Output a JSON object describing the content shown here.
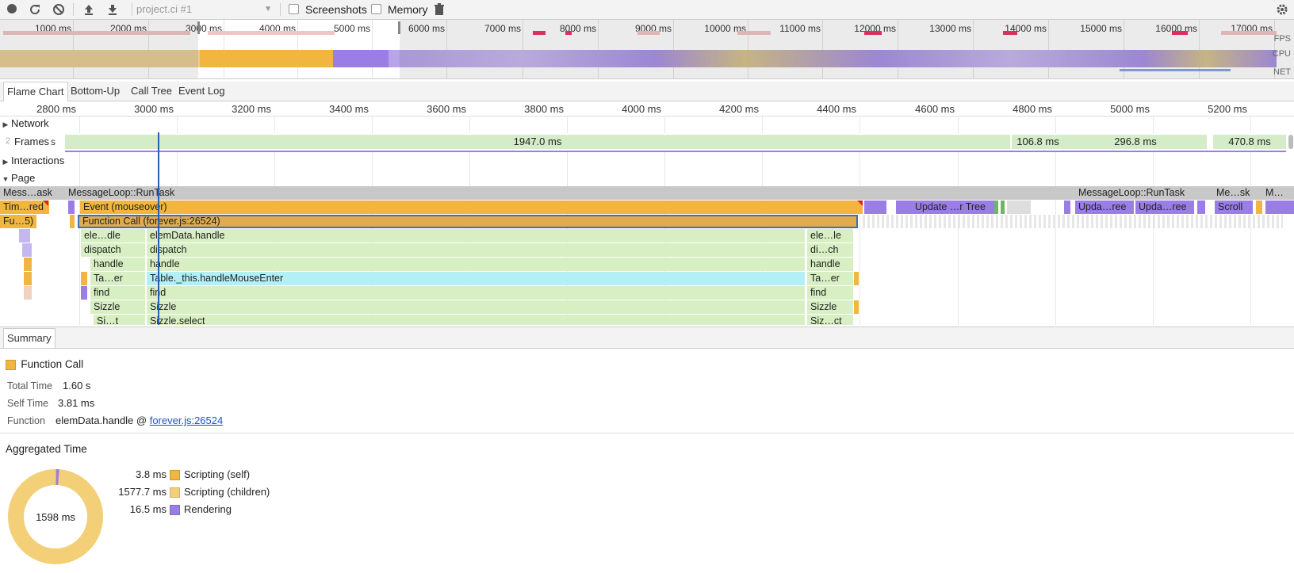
{
  "toolbar": {
    "recording": "project.ci #1",
    "screenshots_label": "Screenshots",
    "memory_label": "Memory"
  },
  "overview": {
    "ticks": [
      "1000 ms",
      "2000 ms",
      "3000 ms",
      "4000 ms",
      "5000 ms",
      "6000 ms",
      "7000 ms",
      "8000 ms",
      "9000 ms",
      "10000 ms",
      "11000 ms",
      "12000 ms",
      "13000 ms",
      "14000 ms",
      "15000 ms",
      "16000 ms",
      "17000 ms"
    ],
    "labels": {
      "fps": "FPS",
      "cpu": "CPU",
      "net": "NET"
    }
  },
  "tabs": [
    "Flame Chart",
    "Bottom-Up",
    "Call Tree",
    "Event Log"
  ],
  "ruler": [
    "2800 ms",
    "3000 ms",
    "3200 ms",
    "3400 ms",
    "3600 ms",
    "3800 ms",
    "4000 ms",
    "4200 ms",
    "4400 ms",
    "4600 ms",
    "4800 ms",
    "5000 ms",
    "5200 ms"
  ],
  "tracks": {
    "network": "Network",
    "frames": "Frames",
    "frames_prefix": "2",
    "frames_suffix": "s",
    "interactions": "Interactions",
    "page": "Page"
  },
  "frames": [
    "1947.0 ms",
    "106.8 ms",
    "296.8 ms",
    "470.8 ms"
  ],
  "flame": {
    "row0": [
      "Mess…ask",
      "MessageLoop::RunTask",
      "MessageLoop::RunTask",
      "Me…sk",
      "M…"
    ],
    "row1": [
      "Tim…red",
      "Event (mouseover)",
      "Update …r Tree",
      "Upda…ree",
      "Upda…ree",
      "Scroll"
    ],
    "row2": [
      "Fu…5)",
      "Function Call (forever.js:26524)"
    ],
    "row3": [
      "ele…dle",
      "elemData.handle",
      "ele…le"
    ],
    "row4": [
      "dispatch",
      "dispatch",
      "di…ch"
    ],
    "row5": [
      "handle",
      "handle",
      "handle"
    ],
    "row6": [
      "Ta…er",
      "Table._this.handleMouseEnter",
      "Ta…er"
    ],
    "row7": [
      "find",
      "find",
      "find"
    ],
    "row8": [
      "Sizzle",
      "Sizzle",
      "Sizzle"
    ],
    "row9": [
      "Si…t",
      "Sizzle.select",
      "Siz…ct"
    ]
  },
  "summary": {
    "tab": "Summary",
    "title": "Function Call",
    "total_time_label": "Total Time",
    "total_time": "1.60 s",
    "self_time_label": "Self Time",
    "self_time": "3.81 ms",
    "function_label": "Function",
    "function_name": "elemData.handle @ ",
    "function_link": "forever.js:26524",
    "aggregated_title": "Aggregated Time",
    "donut_center": "1598 ms",
    "legend": [
      {
        "value": "3.8 ms",
        "label": "Scripting (self)",
        "color": "#f0b640"
      },
      {
        "value": "1577.7 ms",
        "label": "Scripting (children)",
        "color": "#f3cf78"
      },
      {
        "value": "16.5 ms",
        "label": "Rendering",
        "color": "#9a7ee6"
      }
    ]
  },
  "colors": {
    "scripting": "#f0b640",
    "scripting_light": "#f3cf78",
    "rendering": "#9a7ee6",
    "frame": "#d4ecc8",
    "js_green": "#d8efc4",
    "highlight": "#b2f0f6",
    "task": "#c8c8c8",
    "painting": "#70b560"
  }
}
